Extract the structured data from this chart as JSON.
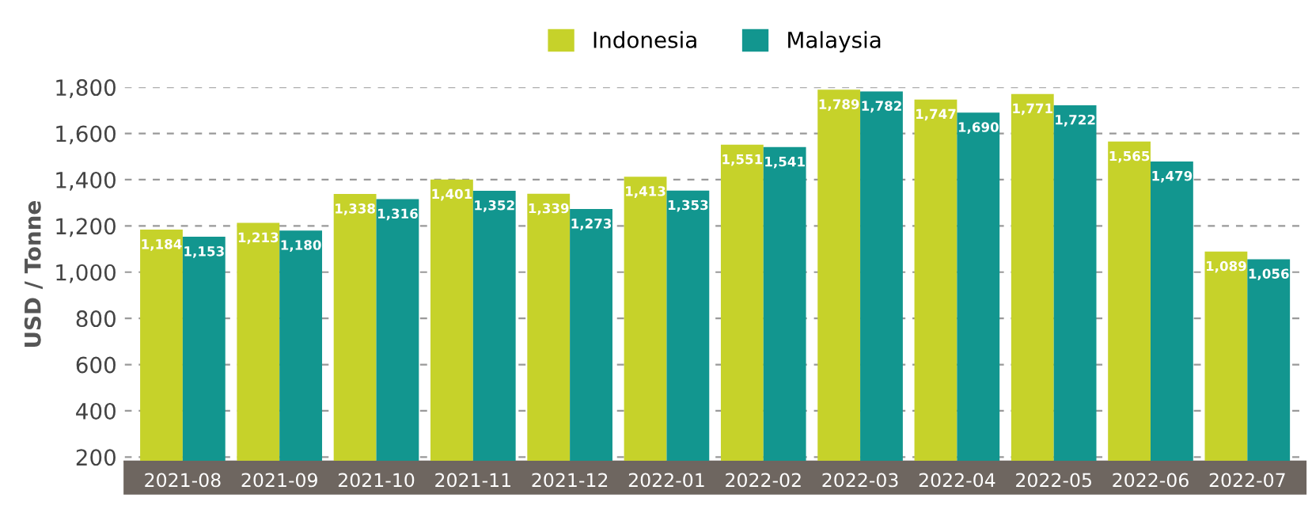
{
  "chart_data": {
    "type": "bar",
    "ylabel": "USD / Tonne",
    "categories": [
      "2021-08",
      "2021-09",
      "2021-10",
      "2021-11",
      "2021-12",
      "2022-01",
      "2022-02",
      "2022-03",
      "2022-04",
      "2022-05",
      "2022-06",
      "2022-07"
    ],
    "series": [
      {
        "name": "Indonesia",
        "color": "#c6d22a",
        "values": [
          1184,
          1213,
          1338,
          1401,
          1339,
          1413,
          1551,
          1789,
          1747,
          1771,
          1565,
          1089
        ],
        "value_labels": [
          "1,184",
          "1,213",
          "1,338",
          "1,401",
          "1,339",
          "1,413",
          "1,551",
          "1,789",
          "1,747",
          "1,771",
          "1,565",
          "1,089"
        ]
      },
      {
        "name": "Malaysia",
        "color": "#12968f",
        "values": [
          1153,
          1180,
          1316,
          1352,
          1273,
          1353,
          1541,
          1782,
          1690,
          1722,
          1479,
          1056
        ],
        "value_labels": [
          "1,153",
          "1,180",
          "1,316",
          "1,352",
          "1,273",
          "1,353",
          "1,541",
          "1,782",
          "1,690",
          "1,722",
          "1,479",
          "1,056"
        ]
      }
    ],
    "ylim": [
      180,
      1800
    ],
    "yticks": [
      {
        "value": 200,
        "label": "200"
      },
      {
        "value": 400,
        "label": "400"
      },
      {
        "value": 600,
        "label": "600"
      },
      {
        "value": 800,
        "label": "800"
      },
      {
        "value": 1000,
        "label": "1,000"
      },
      {
        "value": 1200,
        "label": "1,200"
      },
      {
        "value": 1400,
        "label": "1,400"
      },
      {
        "value": 1600,
        "label": "1,600"
      },
      {
        "value": 1800,
        "label": "1,800"
      }
    ],
    "grid": "y",
    "legend": "top"
  }
}
